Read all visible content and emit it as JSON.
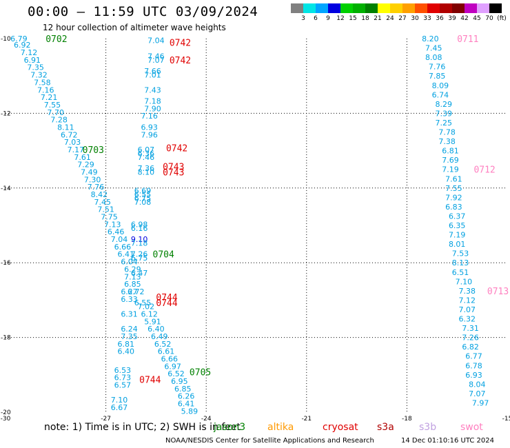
{
  "header": {
    "title": "00:00 — 11:59 UTC 03/09/2024",
    "subtitle": "12 hour collection of altimeter wave heights"
  },
  "colorbar": {
    "labels": [
      "3",
      "6",
      "9",
      "12",
      "15",
      "18",
      "21",
      "24",
      "27",
      "30",
      "33",
      "36",
      "39",
      "42",
      "45",
      "70",
      "(ft)"
    ],
    "colors": [
      "#808080",
      "#00e5e5",
      "#00a5ff",
      "#0000e0",
      "#00d000",
      "#00b000",
      "#008000",
      "#ffff00",
      "#ffd000",
      "#ffa000",
      "#ff5000",
      "#e00000",
      "#b00000",
      "#800000",
      "#c000c0",
      "#e0a0ff",
      "#000000"
    ]
  },
  "chart_data": {
    "type": "scatter",
    "title": "00:00 — 11:59 UTC 03/09/2024",
    "xlim": [
      -30,
      -15
    ],
    "ylim": [
      -20,
      -10
    ],
    "xticks": [
      "-30",
      "-27",
      "-24",
      "-21",
      "-18",
      "-15"
    ],
    "yticks": [
      "-10",
      "-12",
      "-14",
      "-16",
      "-18",
      "-20"
    ],
    "grid": true,
    "series": [
      {
        "name": "jason3",
        "color": "#00a0e0",
        "track": "A",
        "points": [
          {
            "x": -29.6,
            "y": -10.0,
            "v": "6.79"
          },
          {
            "x": -29.5,
            "y": -10.17,
            "v": "6.92"
          },
          {
            "x": -29.3,
            "y": -10.37,
            "v": "7.12"
          },
          {
            "x": -29.2,
            "y": -10.57,
            "v": "6.91"
          },
          {
            "x": -29.1,
            "y": -10.77,
            "v": "7.35"
          },
          {
            "x": -29.0,
            "y": -10.97,
            "v": "7.32"
          },
          {
            "x": -28.9,
            "y": -11.17,
            "v": "7.58"
          },
          {
            "x": -28.8,
            "y": -11.37,
            "v": "7.16"
          },
          {
            "x": -28.7,
            "y": -11.57,
            "v": "7.21"
          },
          {
            "x": -28.6,
            "y": -11.77,
            "v": "7.55"
          },
          {
            "x": -28.5,
            "y": -11.97,
            "v": "7.70"
          },
          {
            "x": -28.4,
            "y": -12.17,
            "v": "7.28"
          },
          {
            "x": -28.2,
            "y": -12.37,
            "v": "8.11"
          },
          {
            "x": -28.1,
            "y": -12.57,
            "v": "6.72"
          },
          {
            "x": -28.0,
            "y": -12.77,
            "v": "7.03"
          },
          {
            "x": -27.9,
            "y": -12.97,
            "v": "7.17"
          },
          {
            "x": -27.7,
            "y": -13.17,
            "v": "7.61"
          },
          {
            "x": -27.6,
            "y": -13.37,
            "v": "7.29"
          },
          {
            "x": -27.5,
            "y": -13.57,
            "v": "7.49"
          },
          {
            "x": -27.4,
            "y": -13.77,
            "v": "7.30"
          },
          {
            "x": -27.3,
            "y": -13.97,
            "v": "7.76"
          },
          {
            "x": -27.2,
            "y": -14.17,
            "v": "8.42"
          },
          {
            "x": -27.1,
            "y": -14.37,
            "v": "7.45"
          },
          {
            "x": -27.0,
            "y": -14.57,
            "v": "7.51"
          },
          {
            "x": -26.9,
            "y": -14.77,
            "v": "7.75"
          },
          {
            "x": -26.8,
            "y": -14.97,
            "v": "7.13"
          },
          {
            "x": -26.7,
            "y": -15.17,
            "v": "6.46"
          },
          {
            "x": -26.6,
            "y": -15.37,
            "v": "7.04"
          },
          {
            "x": -26.5,
            "y": -15.57,
            "v": "6.66"
          },
          {
            "x": -26.4,
            "y": -15.77,
            "v": "6.41"
          },
          {
            "x": -26.3,
            "y": -15.97,
            "v": "6.04"
          },
          {
            "x": -26.2,
            "y": -16.17,
            "v": "6.29"
          },
          {
            "x": -26.2,
            "y": -16.37,
            "v": "7.13"
          },
          {
            "x": -26.2,
            "y": -16.57,
            "v": "6.85"
          },
          {
            "x": -26.3,
            "y": -16.77,
            "v": "6.27"
          },
          {
            "x": -26.3,
            "y": -16.97,
            "v": "6.33"
          },
          {
            "x": -26.3,
            "y": -17.37,
            "v": "6.31"
          },
          {
            "x": -26.3,
            "y": -17.77,
            "v": "6.24"
          },
          {
            "x": -26.3,
            "y": -17.97,
            "v": "7.35"
          },
          {
            "x": -26.4,
            "y": -18.17,
            "v": "6.81"
          },
          {
            "x": -26.4,
            "y": -18.37,
            "v": "6.40"
          },
          {
            "x": -26.5,
            "y": -18.87,
            "v": "6.53"
          },
          {
            "x": -26.5,
            "y": -19.07,
            "v": "6.73"
          },
          {
            "x": -26.5,
            "y": -19.27,
            "v": "6.57"
          },
          {
            "x": -26.6,
            "y": -19.67,
            "v": "7.10"
          },
          {
            "x": -26.6,
            "y": -19.87,
            "v": "6.67"
          }
        ]
      },
      {
        "name": "jason3",
        "color": "#00a0e0",
        "track": "B",
        "points": [
          {
            "x": -25.5,
            "y": -10.05,
            "v": "7.04"
          },
          {
            "x": -25.5,
            "y": -10.47,
            "v": "7.46"
          },
          {
            "x": -25.5,
            "y": -10.57,
            "v": "7.07"
          },
          {
            "x": -25.6,
            "y": -10.87,
            "v": "7.66"
          },
          {
            "x": -25.6,
            "y": -10.97,
            "v": "7.01"
          },
          {
            "x": -25.6,
            "y": -11.37,
            "v": "7.43"
          },
          {
            "x": -25.6,
            "y": -11.67,
            "v": "7.18"
          },
          {
            "x": -25.6,
            "y": -11.87,
            "v": "7.90"
          },
          {
            "x": -25.7,
            "y": -12.07,
            "v": "7.16"
          },
          {
            "x": -25.7,
            "y": -12.37,
            "v": "6.93"
          },
          {
            "x": -25.7,
            "y": -12.57,
            "v": "7.96"
          },
          {
            "x": -25.8,
            "y": -12.97,
            "v": "6.07"
          },
          {
            "x": -25.8,
            "y": -13.07,
            "v": "6.36"
          },
          {
            "x": -25.8,
            "y": -13.17,
            "v": "7.46"
          },
          {
            "x": -25.8,
            "y": -13.47,
            "v": "7.36"
          },
          {
            "x": -25.8,
            "y": -13.57,
            "v": "8.10"
          },
          {
            "x": -25.9,
            "y": -14.07,
            "v": "6.69"
          },
          {
            "x": -25.9,
            "y": -14.17,
            "v": "6.55"
          },
          {
            "x": -25.9,
            "y": -14.27,
            "v": "6.75"
          },
          {
            "x": -25.9,
            "y": -14.37,
            "v": "7.08"
          },
          {
            "x": -26.0,
            "y": -14.97,
            "v": "6.98"
          },
          {
            "x": -26.0,
            "y": -15.07,
            "v": "6.16"
          },
          {
            "x": -26.0,
            "y": -15.37,
            "v": "9.10",
            "c": "#0000e0"
          },
          {
            "x": -26.0,
            "y": -15.47,
            "v": "7.18"
          },
          {
            "x": -26.0,
            "y": -15.77,
            "v": "7.26"
          },
          {
            "x": -26.0,
            "y": -15.87,
            "v": "6.75"
          },
          {
            "x": -26.0,
            "y": -16.27,
            "v": "6.47"
          },
          {
            "x": -26.1,
            "y": -16.77,
            "v": "6.72"
          },
          {
            "x": -25.9,
            "y": -17.07,
            "v": "6.55"
          },
          {
            "x": -25.8,
            "y": -17.17,
            "v": "7.02"
          },
          {
            "x": -25.7,
            "y": -17.37,
            "v": "6.12"
          },
          {
            "x": -25.6,
            "y": -17.57,
            "v": "5.91"
          },
          {
            "x": -25.5,
            "y": -17.77,
            "v": "6.40"
          },
          {
            "x": -25.4,
            "y": -17.97,
            "v": "6.49"
          },
          {
            "x": -25.3,
            "y": -18.17,
            "v": "6.52"
          },
          {
            "x": -25.2,
            "y": -18.37,
            "v": "6.61"
          },
          {
            "x": -25.1,
            "y": -18.57,
            "v": "6.66"
          },
          {
            "x": -25.0,
            "y": -18.77,
            "v": "6.97"
          },
          {
            "x": -24.9,
            "y": -18.97,
            "v": "6.52"
          },
          {
            "x": -24.8,
            "y": -19.17,
            "v": "6.95"
          },
          {
            "x": -24.7,
            "y": -19.37,
            "v": "6.85"
          },
          {
            "x": -24.6,
            "y": -19.57,
            "v": "6.26"
          },
          {
            "x": -24.6,
            "y": -19.77,
            "v": "6.41"
          },
          {
            "x": -24.5,
            "y": -19.97,
            "v": "5.89"
          }
        ]
      },
      {
        "name": "jason3",
        "color": "#00a0e0",
        "track": "C",
        "points": [
          {
            "x": -17.3,
            "y": -10.0,
            "v": "8.20"
          },
          {
            "x": -17.2,
            "y": -10.25,
            "v": "7.45"
          },
          {
            "x": -17.2,
            "y": -10.5,
            "v": "8.08"
          },
          {
            "x": -17.1,
            "y": -10.75,
            "v": "7.76"
          },
          {
            "x": -17.1,
            "y": -11.0,
            "v": "7.85"
          },
          {
            "x": -17.0,
            "y": -11.25,
            "v": "8.09"
          },
          {
            "x": -17.0,
            "y": -11.5,
            "v": "6.74"
          },
          {
            "x": -16.9,
            "y": -11.75,
            "v": "8.29"
          },
          {
            "x": -16.9,
            "y": -12.0,
            "v": "7.39"
          },
          {
            "x": -16.9,
            "y": -12.25,
            "v": "7.25"
          },
          {
            "x": -16.8,
            "y": -12.5,
            "v": "7.78"
          },
          {
            "x": -16.8,
            "y": -12.75,
            "v": "7.38"
          },
          {
            "x": -16.7,
            "y": -13.0,
            "v": "6.81"
          },
          {
            "x": -16.7,
            "y": -13.25,
            "v": "7.69"
          },
          {
            "x": -16.7,
            "y": -13.5,
            "v": "7.19"
          },
          {
            "x": -16.6,
            "y": -13.75,
            "v": "7.61"
          },
          {
            "x": -16.6,
            "y": -14.0,
            "v": "7.55"
          },
          {
            "x": -16.6,
            "y": -14.25,
            "v": "7.92"
          },
          {
            "x": -16.6,
            "y": -14.5,
            "v": "6.83"
          },
          {
            "x": -16.5,
            "y": -14.75,
            "v": "6.37"
          },
          {
            "x": -16.5,
            "y": -15.0,
            "v": "6.35"
          },
          {
            "x": -16.5,
            "y": -15.25,
            "v": "7.19"
          },
          {
            "x": -16.5,
            "y": -15.5,
            "v": "8.01"
          },
          {
            "x": -16.4,
            "y": -15.75,
            "v": "7.53"
          },
          {
            "x": -16.4,
            "y": -16.0,
            "v": "8.13"
          },
          {
            "x": -16.4,
            "y": -16.25,
            "v": "6.51"
          },
          {
            "x": -16.3,
            "y": -16.5,
            "v": "7.10"
          },
          {
            "x": -16.2,
            "y": -16.75,
            "v": "7.38"
          },
          {
            "x": -16.2,
            "y": -17.0,
            "v": "7.12"
          },
          {
            "x": -16.2,
            "y": -17.25,
            "v": "7.07"
          },
          {
            "x": -16.2,
            "y": -17.5,
            "v": "6.32"
          },
          {
            "x": -16.1,
            "y": -17.75,
            "v": "7.31"
          },
          {
            "x": -16.1,
            "y": -18.0,
            "v": "7.26"
          },
          {
            "x": -16.1,
            "y": -18.25,
            "v": "6.82"
          },
          {
            "x": -16.0,
            "y": -18.5,
            "v": "6.77"
          },
          {
            "x": -16.0,
            "y": -18.75,
            "v": "6.78"
          },
          {
            "x": -16.0,
            "y": -19.0,
            "v": "6.93"
          },
          {
            "x": -15.9,
            "y": -19.25,
            "v": "8.04"
          },
          {
            "x": -15.9,
            "y": -19.5,
            "v": "7.07"
          },
          {
            "x": -15.8,
            "y": -19.75,
            "v": "7.97"
          }
        ]
      }
    ],
    "time_labels": [
      {
        "x": -28.8,
        "y": -10.0,
        "t": "0702",
        "c": "#008000"
      },
      {
        "x": -25.1,
        "y": -10.1,
        "t": "0742",
        "c": "#e00000"
      },
      {
        "x": -25.1,
        "y": -10.57,
        "t": "0742",
        "c": "#e00000"
      },
      {
        "x": -27.7,
        "y": -12.97,
        "t": "0703",
        "c": "#008000"
      },
      {
        "x": -25.2,
        "y": -12.92,
        "t": "0742",
        "c": "#e00000"
      },
      {
        "x": -25.3,
        "y": -13.42,
        "t": "0743",
        "c": "#e00000"
      },
      {
        "x": -25.3,
        "y": -13.57,
        "t": "0743",
        "c": "#e00000"
      },
      {
        "x": -25.6,
        "y": -15.77,
        "t": "0704",
        "c": "#008000"
      },
      {
        "x": -25.5,
        "y": -16.92,
        "t": "0744",
        "c": "#e00000"
      },
      {
        "x": -25.5,
        "y": -17.07,
        "t": "0744",
        "c": "#e00000"
      },
      {
        "x": -24.5,
        "y": -18.92,
        "t": "0705",
        "c": "#008000"
      },
      {
        "x": -26.0,
        "y": -19.12,
        "t": "0744",
        "c": "#e00000"
      },
      {
        "x": -16.5,
        "y": -10.0,
        "t": "0711",
        "c": "#ff80c0"
      },
      {
        "x": -16.0,
        "y": -13.5,
        "t": "0712",
        "c": "#ff80c0"
      },
      {
        "x": -15.6,
        "y": -16.75,
        "t": "0713",
        "c": "#ff80c0"
      }
    ]
  },
  "footer": {
    "note": "note: 1) Time is in UTC; 2) SWH is in feet",
    "satellites": [
      {
        "name": "jason3",
        "color": "#008000"
      },
      {
        "name": "altika",
        "color": "#ff9900"
      },
      {
        "name": "cryosat",
        "color": "#e00000"
      },
      {
        "name": "s3a",
        "color": "#b00000"
      },
      {
        "name": "s3b",
        "color": "#c0a0e0"
      },
      {
        "name": "swot",
        "color": "#ff80c0"
      }
    ],
    "credit": "NOAA/NESDIS Center for Satellite Applications and Research",
    "timestamp": "14 Dec 01:10:16 UTC 2024"
  }
}
